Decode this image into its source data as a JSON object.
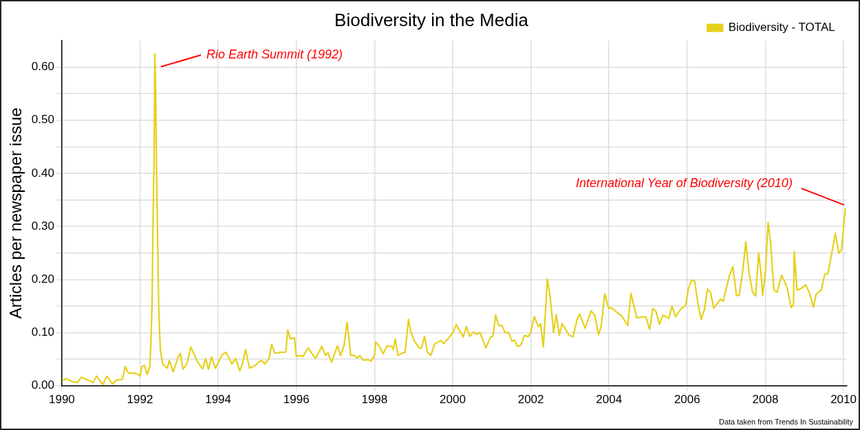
{
  "chart_data": {
    "type": "line",
    "title": "Biodiversity in the Media",
    "ylabel": "Articles per newspaper issue",
    "xlim": [
      1990,
      2010.08
    ],
    "xticks": [
      1990,
      1992,
      1994,
      1996,
      1998,
      2000,
      2002,
      2004,
      2006,
      2008,
      2010
    ],
    "ylim": [
      0,
      0.65
    ],
    "yticks": [
      {
        "value": 0,
        "label": "0.00"
      },
      {
        "value": 0.05,
        "label": null
      },
      {
        "value": 0.1,
        "label": "0.10"
      },
      {
        "value": 0.15,
        "label": null
      },
      {
        "value": 0.2,
        "label": "0.20"
      },
      {
        "value": 0.25,
        "label": null
      },
      {
        "value": 0.3,
        "label": "0.30"
      },
      {
        "value": 0.35,
        "label": null
      },
      {
        "value": 0.4,
        "label": "0.40"
      },
      {
        "value": 0.45,
        "label": null
      },
      {
        "value": 0.5,
        "label": "0.50"
      },
      {
        "value": 0.55,
        "label": null
      },
      {
        "value": 0.6,
        "label": "0.60"
      }
    ],
    "grid": true,
    "legend": "top right",
    "marker": "none",
    "line_style": "solid",
    "annotations": [
      "Rio Earth Summit (1992)",
      {
        "text": "International Year of Biodiversity (2010)",
        "x": 2010.05,
        "y": 0.334
      },
      "Data taken from Trends In Sustainability"
    ],
    "series": [
      {
        "name": "Biodiversity - TOTAL",
        "color": "#e6d019",
        "x": [
          1990,
          1990.1,
          1990.3,
          1990.4,
          1990.5,
          1990.65,
          1990.8,
          1990.89,
          1991.05,
          1991.15,
          1991.3,
          1991.4,
          1991.55,
          1991.62,
          1991.7,
          1991.9,
          1991.95,
          1992,
          1992.05,
          1992.12,
          1992.18,
          1992.25,
          1992.28,
          1992.31,
          1992.33,
          1992.36,
          1992.38,
          1992.4,
          1992.42,
          1992.45,
          1992.48,
          1992.52,
          1992.58,
          1992.7,
          1992.75,
          1992.85,
          1992.97,
          1993.03,
          1993.1,
          1993.2,
          1993.3,
          1993.45,
          1993.6,
          1993.68,
          1993.75,
          1993.83,
          1993.93,
          1994.1,
          1994.2,
          1994.35,
          1994.45,
          1994.55,
          1994.62,
          1994.7,
          1994.8,
          1994.95,
          1995.1,
          1995.19,
          1995.3,
          1995.37,
          1995.45,
          1995.61,
          1995.73,
          1995.78,
          1995.85,
          1995.95,
          1996,
          1996.09,
          1996.17,
          1996.3,
          1996.49,
          1996.65,
          1996.75,
          1996.81,
          1996.9,
          1997.05,
          1997.13,
          1997.22,
          1997.3,
          1997.39,
          1997.48,
          1997.56,
          1997.62,
          1997.71,
          1997.83,
          1997.91,
          1998,
          1998.03,
          1998.12,
          1998.22,
          1998.32,
          1998.44,
          1998.48,
          1998.53,
          1998.6,
          1998.72,
          1998.78,
          1998.87,
          1998.93,
          1999.02,
          1999.15,
          1999.2,
          1999.28,
          1999.35,
          1999.44,
          1999.54,
          1999.7,
          1999.77,
          2000,
          2000.09,
          2000.27,
          2000.35,
          2000.44,
          2000.53,
          2000.62,
          2000.7,
          2000.85,
          2000.97,
          2001.03,
          2001.1,
          2001.17,
          2001.26,
          2001.34,
          2001.43,
          2001.52,
          2001.58,
          2001.66,
          2001.74,
          2001.84,
          2001.93,
          2001.99,
          2002.09,
          2002.19,
          2002.25,
          2002.32,
          2002.36,
          2002.42,
          2002.48,
          2002.53,
          2002.58,
          2002.65,
          2002.73,
          2002.8,
          2002.98,
          2003.08,
          2003.18,
          2003.25,
          2003.39,
          2003.54,
          2003.64,
          2003.73,
          2003.8,
          2003.89,
          2003.99,
          2004.08,
          2004.25,
          2004.31,
          2004.48,
          2004.56,
          2004.71,
          2004.94,
          2005.04,
          2005.12,
          2005.2,
          2005.29,
          2005.38,
          2005.53,
          2005.61,
          2005.7,
          2005.84,
          2005.96,
          2006.03,
          2006.11,
          2006.19,
          2006.28,
          2006.36,
          2006.44,
          2006.52,
          2006.6,
          2006.68,
          2006.85,
          2006.92,
          2007.09,
          2007.17,
          2007.26,
          2007.33,
          2007.42,
          2007.5,
          2007.58,
          2007.67,
          2007.75,
          2007.83,
          2007.89,
          2007.93,
          2008,
          2008.07,
          2008.13,
          2008.22,
          2008.3,
          2008.42,
          2008.56,
          2008.66,
          2008.72,
          2008.74,
          2008.81,
          2008.94,
          2009.03,
          2009.14,
          2009.23,
          2009.3,
          2009.43,
          2009.52,
          2009.6,
          2009.7,
          2009.79,
          2009.88,
          2009.95,
          2010.01,
          2010.05
        ],
        "values": [
          0.008,
          0.013,
          0.007,
          0.006,
          0.016,
          0.011,
          0.006,
          0.018,
          0.002,
          0.018,
          0.003,
          0.011,
          0.012,
          0.036,
          0.024,
          0.023,
          0.021,
          0.018,
          0.036,
          0.038,
          0.021,
          0.036,
          0.081,
          0.16,
          0.295,
          0.429,
          0.625,
          0.555,
          0.42,
          0.28,
          0.143,
          0.068,
          0.041,
          0.033,
          0.048,
          0.026,
          0.053,
          0.061,
          0.031,
          0.041,
          0.073,
          0.048,
          0.031,
          0.051,
          0.031,
          0.054,
          0.033,
          0.058,
          0.063,
          0.041,
          0.051,
          0.028,
          0.041,
          0.068,
          0.033,
          0.038,
          0.048,
          0.041,
          0.051,
          0.078,
          0.061,
          0.063,
          0.063,
          0.105,
          0.088,
          0.09,
          0.055,
          0.057,
          0.055,
          0.071,
          0.051,
          0.074,
          0.057,
          0.062,
          0.044,
          0.075,
          0.057,
          0.075,
          0.12,
          0.057,
          0.057,
          0.052,
          0.057,
          0.048,
          0.049,
          0.046,
          0.057,
          0.082,
          0.075,
          0.06,
          0.075,
          0.074,
          0.068,
          0.088,
          0.057,
          0.062,
          0.062,
          0.125,
          0.101,
          0.084,
          0.071,
          0.071,
          0.093,
          0.064,
          0.057,
          0.079,
          0.085,
          0.079,
          0.099,
          0.115,
          0.092,
          0.111,
          0.093,
          0.101,
          0.097,
          0.1,
          0.071,
          0.092,
          0.093,
          0.133,
          0.114,
          0.113,
          0.1,
          0.1,
          0.084,
          0.086,
          0.074,
          0.076,
          0.095,
          0.092,
          0.099,
          0.13,
          0.111,
          0.117,
          0.073,
          0.121,
          0.201,
          0.176,
          0.143,
          0.1,
          0.134,
          0.095,
          0.117,
          0.095,
          0.092,
          0.124,
          0.135,
          0.108,
          0.141,
          0.132,
          0.096,
          0.112,
          0.173,
          0.146,
          0.146,
          0.135,
          0.133,
          0.113,
          0.174,
          0.128,
          0.13,
          0.106,
          0.145,
          0.14,
          0.116,
          0.133,
          0.127,
          0.15,
          0.13,
          0.145,
          0.151,
          0.182,
          0.199,
          0.197,
          0.153,
          0.125,
          0.143,
          0.182,
          0.175,
          0.146,
          0.163,
          0.159,
          0.21,
          0.224,
          0.17,
          0.17,
          0.215,
          0.271,
          0.214,
          0.177,
          0.169,
          0.25,
          0.21,
          0.17,
          0.212,
          0.307,
          0.273,
          0.18,
          0.176,
          0.208,
          0.184,
          0.147,
          0.153,
          0.253,
          0.18,
          0.184,
          0.19,
          0.173,
          0.148,
          0.172,
          0.18,
          0.21,
          0.211,
          0.25,
          0.287,
          0.25,
          0.256,
          0.306,
          0.334
        ]
      }
    ]
  }
}
